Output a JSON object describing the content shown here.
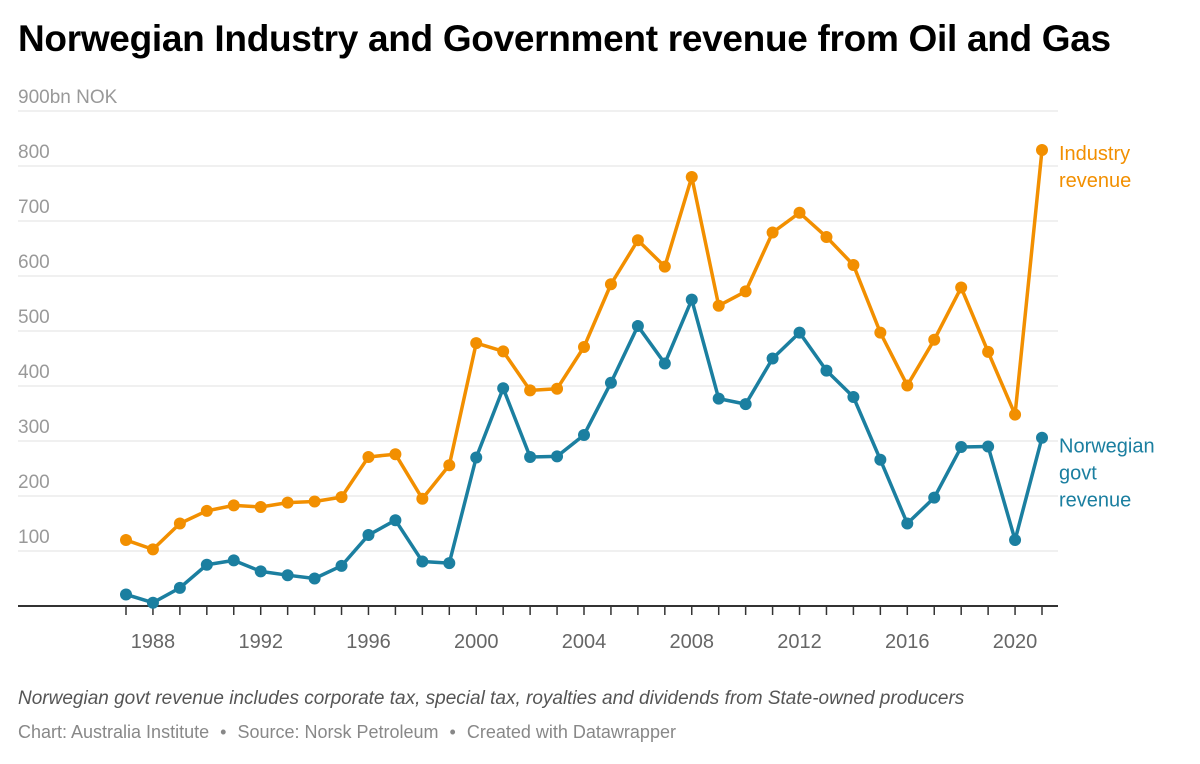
{
  "header": {
    "title": "Norwegian Industry and Government revenue from Oil and Gas"
  },
  "footer": {
    "note": "Norwegian govt revenue includes corporate tax, special tax, royalties and dividends from State-owned producers",
    "chart_by": "Chart: Australia Institute",
    "source": "Source: Norsk Petroleum",
    "tool": "Created with Datawrapper",
    "separator": "•"
  },
  "chart_data": {
    "type": "line",
    "title": "Norwegian Industry and Government revenue from Oil and Gas",
    "y_unit_label": "900bn NOK",
    "ylim": [
      0,
      900
    ],
    "y_ticks": [
      100,
      200,
      300,
      400,
      500,
      600,
      700,
      800,
      900
    ],
    "y_tick_labels": [
      "100",
      "200",
      "300",
      "400",
      "500",
      "600",
      "700",
      "800",
      "900bn NOK"
    ],
    "x_ticks": [
      1988,
      1992,
      1996,
      2000,
      2004,
      2008,
      2012,
      2016,
      2020
    ],
    "x_tick_labels": [
      "1988",
      "1992",
      "1996",
      "2000",
      "2004",
      "2008",
      "2012",
      "2016",
      "2020"
    ],
    "xlim": [
      1986,
      2022
    ],
    "grid": true,
    "x": [
      1987,
      1988,
      1989,
      1990,
      1991,
      1992,
      1993,
      1994,
      1995,
      1996,
      1997,
      1998,
      1999,
      2000,
      2001,
      2002,
      2003,
      2004,
      2005,
      2006,
      2007,
      2008,
      2009,
      2010,
      2011,
      2012,
      2013,
      2014,
      2015,
      2016,
      2017,
      2018,
      2019,
      2020,
      2021
    ],
    "series": [
      {
        "name": "Industry revenue",
        "label_lines": [
          "Industry",
          "revenue"
        ],
        "color": "#f28f00",
        "values": [
          120,
          103,
          150,
          173,
          183,
          180,
          188,
          190,
          198,
          271,
          276,
          195,
          256,
          478,
          463,
          392,
          395,
          471,
          585,
          665,
          617,
          780,
          546,
          572,
          679,
          715,
          671,
          620,
          497,
          401,
          484,
          579,
          462,
          348,
          829
        ]
      },
      {
        "name": "Norwegian govt revenue",
        "label_lines": [
          "Norwegian",
          "govt",
          "revenue"
        ],
        "color": "#1b7fa0",
        "values": [
          21,
          6,
          33,
          75,
          83,
          63,
          56,
          50,
          73,
          129,
          156,
          81,
          78,
          270,
          396,
          271,
          272,
          311,
          406,
          509,
          441,
          557,
          377,
          367,
          450,
          497,
          428,
          380,
          266,
          150,
          197,
          289,
          290,
          120,
          306
        ]
      }
    ]
  }
}
